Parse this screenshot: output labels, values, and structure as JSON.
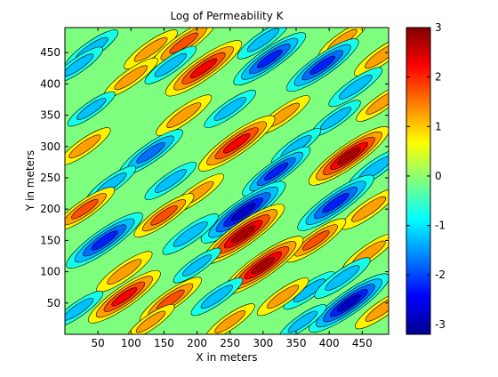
{
  "chart_data": {
    "type": "heatmap",
    "title": "Log of Permeability K",
    "xlabel": "X in meters",
    "ylabel": "Y in meters",
    "xlim": [
      0,
      490
    ],
    "ylim": [
      0,
      490
    ],
    "xticks": [
      50,
      100,
      150,
      200,
      250,
      300,
      350,
      400,
      450
    ],
    "yticks": [
      50,
      100,
      150,
      200,
      250,
      300,
      350,
      400,
      450
    ],
    "colorbar": {
      "range": [
        -3.2,
        3
      ],
      "ticks": [
        -3,
        -2,
        -1,
        0,
        1,
        2,
        3
      ],
      "colormap": "jet"
    },
    "contour_levels": [
      -3,
      -2.5,
      -2,
      -1.5,
      -1,
      -0.5,
      0.5,
      1,
      1.5,
      2,
      2.5
    ],
    "grid": false,
    "features": [
      {
        "x": 40,
        "y": 455,
        "value": -1.3
      },
      {
        "x": 130,
        "y": 455,
        "value": 1.3
      },
      {
        "x": 180,
        "y": 465,
        "value": 1.8
      },
      {
        "x": 300,
        "y": 470,
        "value": -1.2
      },
      {
        "x": 420,
        "y": 470,
        "value": 1.0
      },
      {
        "x": 480,
        "y": 445,
        "value": 1.4
      },
      {
        "x": 20,
        "y": 430,
        "value": -1.1
      },
      {
        "x": 100,
        "y": 410,
        "value": 1.3
      },
      {
        "x": 160,
        "y": 430,
        "value": -1.2
      },
      {
        "x": 210,
        "y": 425,
        "value": 2.4
      },
      {
        "x": 310,
        "y": 440,
        "value": -2.2
      },
      {
        "x": 390,
        "y": 430,
        "value": -2.2
      },
      {
        "x": 440,
        "y": 395,
        "value": -1.3
      },
      {
        "x": 480,
        "y": 370,
        "value": 1.2
      },
      {
        "x": 40,
        "y": 360,
        "value": -1.0
      },
      {
        "x": 180,
        "y": 350,
        "value": 1.4
      },
      {
        "x": 250,
        "y": 360,
        "value": -1.2
      },
      {
        "x": 330,
        "y": 350,
        "value": 1.3
      },
      {
        "x": 410,
        "y": 345,
        "value": -1.1
      },
      {
        "x": 30,
        "y": 300,
        "value": 1.2
      },
      {
        "x": 130,
        "y": 290,
        "value": -1.8
      },
      {
        "x": 260,
        "y": 305,
        "value": 2.4
      },
      {
        "x": 350,
        "y": 300,
        "value": -1.1
      },
      {
        "x": 430,
        "y": 285,
        "value": 2.6
      },
      {
        "x": 70,
        "y": 240,
        "value": -1.1
      },
      {
        "x": 160,
        "y": 245,
        "value": -1.2
      },
      {
        "x": 200,
        "y": 225,
        "value": 1.3
      },
      {
        "x": 320,
        "y": 260,
        "value": -2.0
      },
      {
        "x": 470,
        "y": 265,
        "value": -1.4
      },
      {
        "x": 30,
        "y": 200,
        "value": 1.6
      },
      {
        "x": 150,
        "y": 190,
        "value": 1.6
      },
      {
        "x": 270,
        "y": 195,
        "value": -2.8
      },
      {
        "x": 410,
        "y": 210,
        "value": -2.4
      },
      {
        "x": 460,
        "y": 200,
        "value": 1.4
      },
      {
        "x": 60,
        "y": 150,
        "value": -2.4
      },
      {
        "x": 190,
        "y": 160,
        "value": -1.4
      },
      {
        "x": 270,
        "y": 160,
        "value": 2.7
      },
      {
        "x": 380,
        "y": 150,
        "value": 1.6
      },
      {
        "x": 460,
        "y": 130,
        "value": 1.3
      },
      {
        "x": 90,
        "y": 100,
        "value": 1.4
      },
      {
        "x": 200,
        "y": 110,
        "value": -1.0
      },
      {
        "x": 300,
        "y": 110,
        "value": 2.6
      },
      {
        "x": 370,
        "y": 70,
        "value": -1.2
      },
      {
        "x": 420,
        "y": 90,
        "value": -1.4
      },
      {
        "x": 90,
        "y": 60,
        "value": 2.2
      },
      {
        "x": 160,
        "y": 55,
        "value": 1.7
      },
      {
        "x": 230,
        "y": 60,
        "value": -1.2
      },
      {
        "x": 330,
        "y": 60,
        "value": 1.2
      },
      {
        "x": 430,
        "y": 50,
        "value": -2.6
      },
      {
        "x": 20,
        "y": 40,
        "value": -1.1
      },
      {
        "x": 130,
        "y": 20,
        "value": 1.0
      },
      {
        "x": 480,
        "y": 40,
        "value": 1.3
      },
      {
        "x": 250,
        "y": 20,
        "value": 1.1
      },
      {
        "x": 360,
        "y": 20,
        "value": -1.0
      }
    ]
  }
}
